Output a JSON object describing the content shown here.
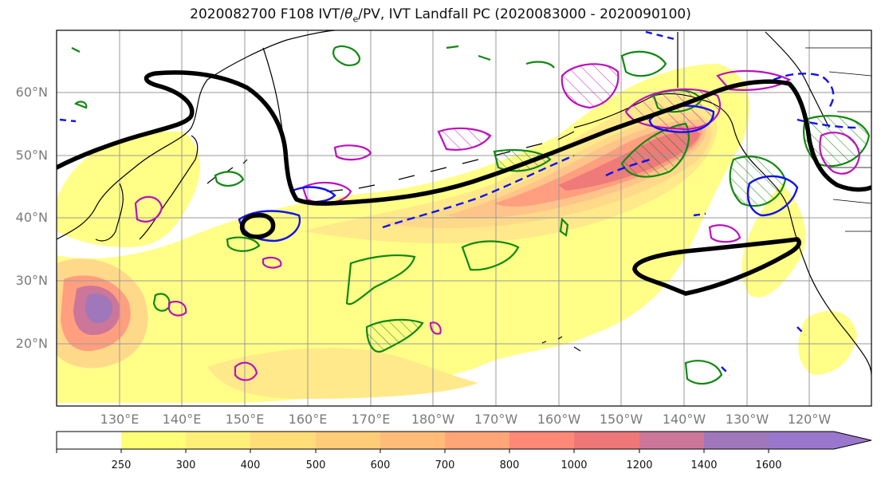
{
  "title": {
    "prefix": "2020082700 F108 IVT/",
    "theta": "θ",
    "theta_sub": "e",
    "suffix": "/PV, IVT Landfall PC (2020083000 - 2020090100)"
  },
  "map": {
    "lat_labels": [
      "60°N",
      "50°N",
      "40°N",
      "30°N",
      "20°N"
    ],
    "lon_labels": [
      "130°E",
      "140°E",
      "150°E",
      "160°E",
      "170°E",
      "180°W",
      "170°W",
      "160°W",
      "150°W",
      "140°W",
      "130°W",
      "120°W"
    ],
    "colors": {
      "theta_e_contour": "#000000",
      "pv_contour_green": "#118811",
      "pv_contour_magenta": "#bb11bb",
      "pv_contour_blue": "#1111ee",
      "coastline": "#000000",
      "gridline": "#9a9a9a"
    }
  },
  "colorbar": {
    "ticks": [
      "250",
      "300",
      "400",
      "500",
      "600",
      "700",
      "800",
      "1000",
      "1200",
      "1400",
      "1600"
    ],
    "colors": [
      "#ffffff",
      "#ffff77",
      "#ffee77",
      "#ffdd77",
      "#ffcc77",
      "#ffbb77",
      "#ffa577",
      "#ff8877",
      "#ee7777",
      "#cc7799",
      "#a077bb",
      "#9a77cc"
    ]
  }
}
